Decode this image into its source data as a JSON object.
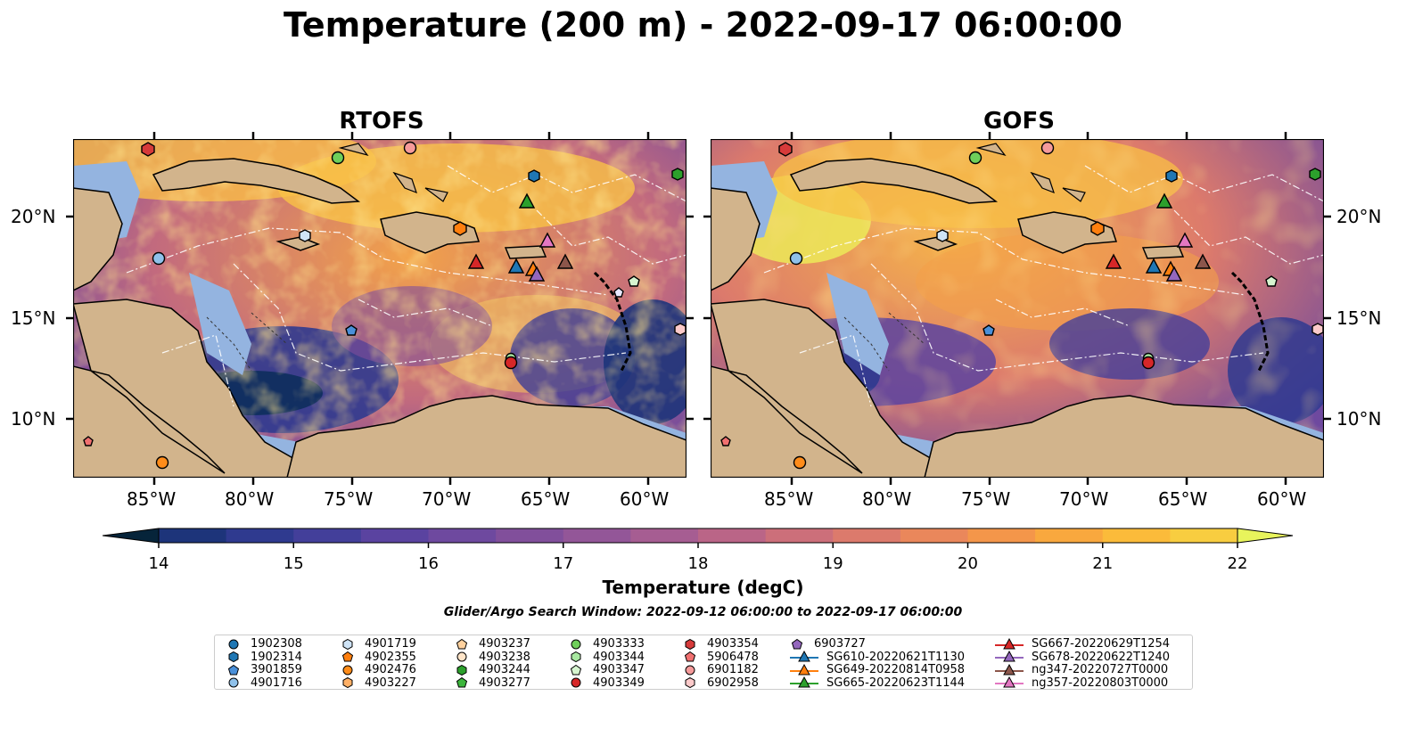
{
  "title": "Temperature (200 m) - 2022-09-17 06:00:00",
  "panels": [
    {
      "title": "RTOFS"
    },
    {
      "title": "GOFS"
    }
  ],
  "lat_labels": [
    "20°N",
    "15°N",
    "10°N"
  ],
  "lon_labels": [
    "85°W",
    "80°W",
    "75°W",
    "70°W",
    "65°W",
    "60°W"
  ],
  "colorbar": {
    "label": "Temperature (degC)",
    "ticks": [
      "14",
      "15",
      "16",
      "17",
      "18",
      "19",
      "20",
      "21",
      "22"
    ],
    "min": 14,
    "max": 22,
    "step": 0.5,
    "colors": [
      "#06243a",
      "#0d2d5c",
      "#1d347a",
      "#2f3a8f",
      "#433f9a",
      "#5a43a0",
      "#6e499f",
      "#814f9b",
      "#935698",
      "#a65d92",
      "#ba6587",
      "#cc6f7a",
      "#dc7a6c",
      "#ea875b",
      "#f4964a",
      "#f9a83e",
      "#fbbb3a",
      "#f8cd40",
      "#f0e055",
      "#e8f45c"
    ]
  },
  "search_window": "Glider/Argo Search Window: 2022-09-12 06:00:00 to 2022-09-17 06:00:00",
  "legend": [
    {
      "label": "1902308",
      "marker": "circle",
      "color": "#1f77b4"
    },
    {
      "label": "1902314",
      "marker": "hexagon",
      "color": "#1f77b4"
    },
    {
      "label": "3901859",
      "marker": "pentagon",
      "color": "#4a90d9"
    },
    {
      "label": "4901716",
      "marker": "circle",
      "color": "#8fc1ea"
    },
    {
      "label": "4901719",
      "marker": "hexagon",
      "color": "#cfe4f7"
    },
    {
      "label": "4902355",
      "marker": "pentagon",
      "color": "#ff7f0e"
    },
    {
      "label": "4902476",
      "marker": "circle",
      "color": "#ff8c1a"
    },
    {
      "label": "4903227",
      "marker": "hexagon",
      "color": "#ffb066"
    },
    {
      "label": "4903237",
      "marker": "pentagon",
      "color": "#ffd19e"
    },
    {
      "label": "4903238",
      "marker": "circle",
      "color": "#ffe4c8"
    },
    {
      "label": "4903244",
      "marker": "hexagon",
      "color": "#2ca02c"
    },
    {
      "label": "4903277",
      "marker": "pentagon",
      "color": "#3cb53c"
    },
    {
      "label": "4903333",
      "marker": "circle",
      "color": "#6fcf5a"
    },
    {
      "label": "4903344",
      "marker": "hexagon",
      "color": "#a8e8a0"
    },
    {
      "label": "4903347",
      "marker": "pentagon",
      "color": "#d6f5d0"
    },
    {
      "label": "4903349",
      "marker": "circle",
      "color": "#d62728"
    },
    {
      "label": "4903354",
      "marker": "hexagon",
      "color": "#d63a3a"
    },
    {
      "label": "5906478",
      "marker": "pentagon",
      "color": "#f07070"
    },
    {
      "label": "6901182",
      "marker": "circle",
      "color": "#f59a9a"
    },
    {
      "label": "6902958",
      "marker": "hexagon",
      "color": "#fccaca"
    },
    {
      "label": "6903727",
      "marker": "pentagon",
      "color": "#9467bd"
    },
    {
      "label": "SG610-20220621T1130",
      "marker": "triangle-line",
      "color": "#1f77b4"
    },
    {
      "label": "SG649-20220814T0958",
      "marker": "triangle-line",
      "color": "#ff7f0e"
    },
    {
      "label": "SG665-20220623T1144",
      "marker": "triangle-line",
      "color": "#2ca02c"
    },
    {
      "label": "SG667-20220629T1254",
      "marker": "triangle-line",
      "color": "#d62728"
    },
    {
      "label": "SG678-20220622T1240",
      "marker": "triangle-line",
      "color": "#9467bd"
    },
    {
      "label": "ng347-20220727T0000",
      "marker": "triangle-line",
      "color": "#8c564b"
    },
    {
      "label": "ng357-20220803T0000",
      "marker": "triangle-line",
      "color": "#e377c2"
    }
  ],
  "map_extent": {
    "lon": [
      -89,
      -58
    ],
    "lat": [
      7,
      24
    ]
  },
  "colors": {
    "land": "#d2b48c",
    "shallow_water": "#94b4e0",
    "coast": "#000000"
  }
}
